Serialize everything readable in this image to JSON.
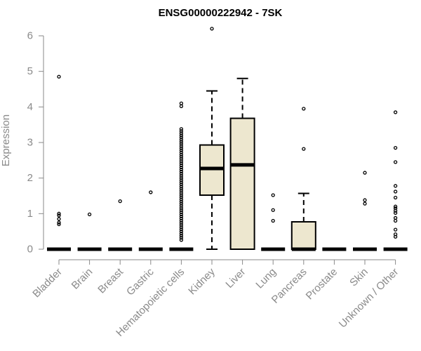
{
  "chart_data": {
    "type": "boxplot",
    "title": "ENSG00000222942 - 7SK",
    "xlabel": "",
    "ylabel": "Expression",
    "ylim": [
      0,
      6
    ],
    "yticks": [
      0,
      1,
      2,
      3,
      4,
      5,
      6
    ],
    "grid": false,
    "colors": {
      "box_fill": "#ede7cf",
      "axis": "#8a8a8a",
      "stroke": "#000000"
    },
    "categories": [
      "Bladder",
      "Brain",
      "Breast",
      "Gastric",
      "Hematopoietic cells",
      "Kidney",
      "Liver",
      "Lung",
      "Pancreas",
      "Prostate",
      "Skin",
      "Unknown / Other"
    ],
    "boxes": [
      {
        "category": "Bladder",
        "q1": 0,
        "median": 0,
        "q3": 0,
        "whisker_low": 0,
        "whisker_high": 0,
        "outliers": [
          4.85,
          1.0,
          0.95,
          0.85,
          0.75,
          0.7
        ]
      },
      {
        "category": "Brain",
        "q1": 0,
        "median": 0,
        "q3": 0,
        "whisker_low": 0,
        "whisker_high": 0,
        "outliers": [
          0.98
        ]
      },
      {
        "category": "Breast",
        "q1": 0,
        "median": 0,
        "q3": 0,
        "whisker_low": 0,
        "whisker_high": 0,
        "outliers": [
          1.35
        ]
      },
      {
        "category": "Gastric",
        "q1": 0,
        "median": 0,
        "q3": 0,
        "whisker_low": 0,
        "whisker_high": 0,
        "outliers": [
          1.6
        ]
      },
      {
        "category": "Hematopoietic cells",
        "q1": 0,
        "median": 0,
        "q3": 0,
        "whisker_low": 0,
        "whisker_high": 0,
        "outliers": [
          4.1,
          4.02,
          3.38,
          3.32,
          3.26,
          3.2,
          3.14,
          3.08,
          3.02,
          2.96,
          2.9,
          2.84,
          2.78,
          2.72,
          2.66,
          2.6,
          2.54,
          2.48,
          2.42,
          2.36,
          2.3,
          2.24,
          2.18,
          2.12,
          2.06,
          2.0,
          1.94,
          1.88,
          1.82,
          1.76,
          1.7,
          1.64,
          1.58,
          1.52,
          1.46,
          1.4,
          1.34,
          1.28,
          1.22,
          1.16,
          1.1,
          1.04,
          0.98,
          0.92,
          0.86,
          0.8,
          0.74,
          0.68,
          0.62,
          0.56,
          0.5,
          0.44,
          0.38,
          0.32,
          0.26
        ]
      },
      {
        "category": "Kidney",
        "q1": 1.52,
        "median": 2.27,
        "q3": 2.93,
        "whisker_low": 0,
        "whisker_high": 4.45,
        "outliers": [
          6.2
        ]
      },
      {
        "category": "Liver",
        "q1": 0,
        "median": 2.37,
        "q3": 3.68,
        "whisker_low": 0,
        "whisker_high": 4.8,
        "outliers": []
      },
      {
        "category": "Lung",
        "q1": 0,
        "median": 0,
        "q3": 0,
        "whisker_low": 0,
        "whisker_high": 0,
        "outliers": [
          1.52,
          1.1,
          0.8
        ]
      },
      {
        "category": "Pancreas",
        "q1": 0,
        "median": 0,
        "q3": 0.77,
        "whisker_low": 0,
        "whisker_high": 1.57,
        "outliers": [
          3.95,
          2.82
        ]
      },
      {
        "category": "Prostate",
        "q1": 0,
        "median": 0,
        "q3": 0,
        "whisker_low": 0,
        "whisker_high": 0,
        "outliers": []
      },
      {
        "category": "Skin",
        "q1": 0,
        "median": 0,
        "q3": 0,
        "whisker_low": 0,
        "whisker_high": 0,
        "outliers": [
          2.15,
          1.38,
          1.28
        ]
      },
      {
        "category": "Unknown / Other",
        "q1": 0,
        "median": 0,
        "q3": 0,
        "whisker_low": 0,
        "whisker_high": 0,
        "outliers": [
          3.85,
          2.85,
          2.45,
          1.78,
          1.62,
          1.45,
          1.2,
          1.15,
          1.08,
          1.02,
          0.88,
          0.8,
          0.55,
          0.42,
          0.35
        ]
      }
    ]
  }
}
